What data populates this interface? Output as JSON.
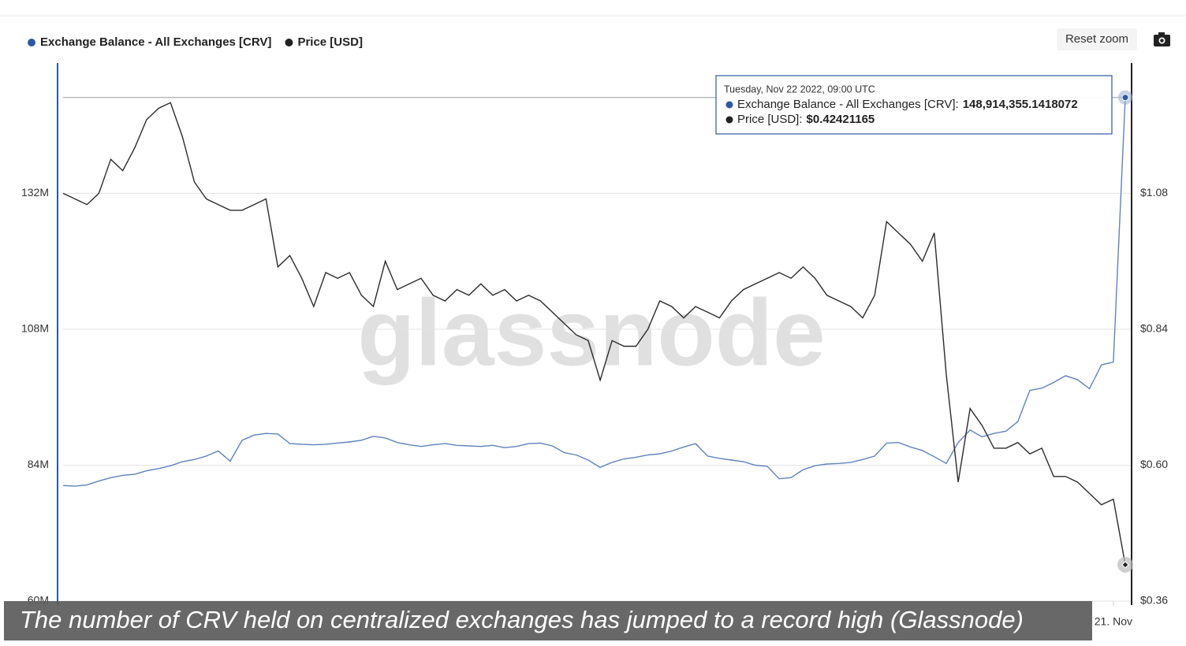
{
  "chart_data": {
    "type": "line",
    "caption": "The number of CRV held on centralized exchanges has jumped to a record high (Glassnode)",
    "watermark": "glassnode",
    "button": "Reset zoom",
    "x": [
      "2022-08-25",
      "2022-08-26",
      "2022-08-27",
      "2022-08-28",
      "2022-08-29",
      "2022-08-30",
      "2022-08-31",
      "2022-09-01",
      "2022-09-02",
      "2022-09-03",
      "2022-09-04",
      "2022-09-05",
      "2022-09-06",
      "2022-09-07",
      "2022-09-08",
      "2022-09-09",
      "2022-09-10",
      "2022-09-11",
      "2022-09-12",
      "2022-09-13",
      "2022-09-14",
      "2022-09-15",
      "2022-09-16",
      "2022-09-17",
      "2022-09-18",
      "2022-09-19",
      "2022-09-20",
      "2022-09-21",
      "2022-09-22",
      "2022-09-23",
      "2022-09-24",
      "2022-09-25",
      "2022-09-26",
      "2022-09-27",
      "2022-09-28",
      "2022-09-29",
      "2022-09-30",
      "2022-10-01",
      "2022-10-02",
      "2022-10-03",
      "2022-10-04",
      "2022-10-05",
      "2022-10-06",
      "2022-10-07",
      "2022-10-08",
      "2022-10-09",
      "2022-10-10",
      "2022-10-11",
      "2022-10-12",
      "2022-10-13",
      "2022-10-14",
      "2022-10-15",
      "2022-10-16",
      "2022-10-17",
      "2022-10-18",
      "2022-10-19",
      "2022-10-20",
      "2022-10-21",
      "2022-10-22",
      "2022-10-23",
      "2022-10-24",
      "2022-10-25",
      "2022-10-26",
      "2022-10-27",
      "2022-10-28",
      "2022-10-29",
      "2022-10-30",
      "2022-10-31",
      "2022-11-01",
      "2022-11-02",
      "2022-11-03",
      "2022-11-04",
      "2022-11-05",
      "2022-11-06",
      "2022-11-07",
      "2022-11-08",
      "2022-11-09",
      "2022-11-10",
      "2022-11-11",
      "2022-11-12",
      "2022-11-13",
      "2022-11-14",
      "2022-11-15",
      "2022-11-16",
      "2022-11-17",
      "2022-11-18",
      "2022-11-19",
      "2022-11-20",
      "2022-11-21",
      "2022-11-22"
    ],
    "xlim": [
      "2022-08-25",
      "2022-11-22"
    ],
    "xticks": [
      {
        "value": "2022-11-21",
        "label": "21. Nov"
      }
    ],
    "ylim": [
      60000000,
      155000000
    ],
    "yticks": [
      {
        "value": 60000000,
        "label": "60M"
      },
      {
        "value": 84000000,
        "label": "84M"
      },
      {
        "value": 108000000,
        "label": "108M"
      },
      {
        "value": 132000000,
        "label": "132M"
      }
    ],
    "y2lim": [
      0.36,
      1.31
    ],
    "y2ticks": [
      {
        "value": 0.36,
        "label": "$0.36"
      },
      {
        "value": 0.6,
        "label": "$0.60"
      },
      {
        "value": 0.84,
        "label": "$0.84"
      },
      {
        "value": 1.08,
        "label": "$1.08"
      }
    ],
    "grid": true,
    "series": [
      {
        "name": "Exchange Balance - All Exchanges [CRV]",
        "color": "#5f83bd",
        "marker_color": "#2f58a3",
        "axis": "y",
        "values": [
          80400000,
          80300000,
          80500000,
          81200000,
          81800000,
          82200000,
          82400000,
          83000000,
          83400000,
          83900000,
          84600000,
          85000000,
          85600000,
          86500000,
          84700000,
          88400000,
          89300000,
          89600000,
          89500000,
          87800000,
          87700000,
          87600000,
          87700000,
          87900000,
          88100000,
          88400000,
          89100000,
          88800000,
          88000000,
          87600000,
          87300000,
          87600000,
          87800000,
          87500000,
          87400000,
          87300000,
          87500000,
          87100000,
          87300000,
          87800000,
          87900000,
          87400000,
          86200000,
          85800000,
          84900000,
          83600000,
          84500000,
          85100000,
          85400000,
          85800000,
          86000000,
          86500000,
          87200000,
          87800000,
          85600000,
          85200000,
          84900000,
          84600000,
          84000000,
          83800000,
          81600000,
          81800000,
          83200000,
          83900000,
          84200000,
          84300000,
          84500000,
          85000000,
          85600000,
          87900000,
          88000000,
          87200000,
          86600000,
          85500000,
          84300000,
          88000000,
          90200000,
          89000000,
          89600000,
          90000000,
          91700000,
          97200000,
          97600000,
          98600000,
          99800000,
          99100000,
          97500000,
          101700000,
          102200000,
          148914355.1418072
        ]
      },
      {
        "name": "Price [USD]",
        "color": "#2b2b2b",
        "marker_color": "#222222",
        "axis": "y2",
        "values": [
          1.08,
          1.07,
          1.06,
          1.08,
          1.14,
          1.12,
          1.16,
          1.21,
          1.23,
          1.24,
          1.18,
          1.1,
          1.07,
          1.06,
          1.05,
          1.05,
          1.06,
          1.07,
          0.95,
          0.97,
          0.93,
          0.88,
          0.94,
          0.93,
          0.94,
          0.9,
          0.88,
          0.96,
          0.91,
          0.92,
          0.93,
          0.9,
          0.89,
          0.91,
          0.9,
          0.92,
          0.9,
          0.91,
          0.89,
          0.9,
          0.89,
          0.87,
          0.85,
          0.83,
          0.82,
          0.75,
          0.82,
          0.81,
          0.81,
          0.84,
          0.89,
          0.88,
          0.86,
          0.88,
          0.87,
          0.86,
          0.89,
          0.91,
          0.92,
          0.93,
          0.94,
          0.93,
          0.95,
          0.93,
          0.9,
          0.89,
          0.88,
          0.86,
          0.9,
          1.03,
          1.01,
          0.99,
          0.96,
          1.01,
          0.76,
          0.57,
          0.7,
          0.67,
          0.63,
          0.63,
          0.64,
          0.62,
          0.63,
          0.58,
          0.58,
          0.57,
          0.55,
          0.53,
          0.54,
          0.42421165
        ]
      }
    ],
    "tooltip": {
      "date": "Tuesday, Nov 22 2022, 09:00 UTC",
      "items": [
        {
          "text": "Exchange Balance - All Exchanges [CRV]:",
          "value": "148,914,355.1418072"
        },
        {
          "text": "Price [USD]:",
          "value": "$0.42421165"
        }
      ]
    }
  }
}
